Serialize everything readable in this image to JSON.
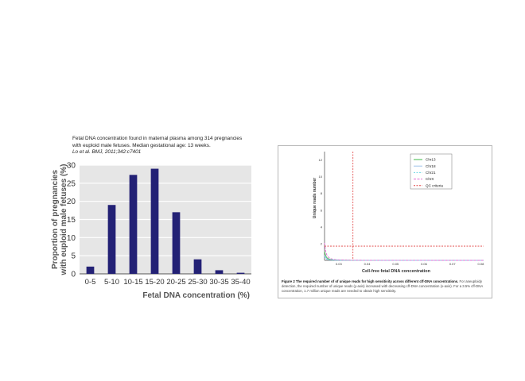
{
  "left_caption": {
    "line1": "Fetal DNA concentration found in maternal plasma among 314 pregnancies",
    "line2": "with euploid male fetuses. Median gestational age: 13 weeks.",
    "citation": "Lo et al. BMJ, 2011;342:c7401"
  },
  "chart_data": [
    {
      "type": "bar",
      "title": "",
      "xlabel": "Fetal DNA concentration (%)",
      "ylabel": "Proportion of pregnancies with euploid male fetuses (%)",
      "ylabel_lines": [
        "Proportion of pregnancies",
        "with euploid male fetuses (%)"
      ],
      "categories": [
        "0-5",
        "5-10",
        "10-15",
        "15-20",
        "20-25",
        "25-30",
        "30-35",
        "35-40"
      ],
      "values": [
        2,
        19,
        27.3,
        29,
        17,
        4,
        1,
        0.3
      ],
      "ylim": [
        0,
        30
      ],
      "yticks": [
        0,
        5,
        10,
        15,
        20,
        25,
        30
      ],
      "grid": true,
      "colors": {
        "bar": "#232175",
        "plot_bg": "#e6e6e6",
        "grid": "#ffffff"
      }
    },
    {
      "type": "line",
      "title": "",
      "xlabel": "Cell-free fetal DNA concentration",
      "ylabel": "Unique reads number",
      "xticks": [
        "0.03",
        "0.04",
        "0.05",
        "0.06",
        "0.07",
        "0.08"
      ],
      "yticks": [
        "2",
        "4",
        "6",
        "8",
        "10",
        "12"
      ],
      "xlim": [
        0.025,
        0.081
      ],
      "ylim": [
        0,
        13
      ],
      "series": [
        {
          "name": "Chr13",
          "color": "#3fb84a",
          "dash": "",
          "k": 0.0325
        },
        {
          "name": "Chr18",
          "color": "#9ec3ea",
          "dash": "",
          "k": 0.0246
        },
        {
          "name": "Chr21",
          "color": "#6fd6e6",
          "dash": "2,1.5",
          "k": 0.021
        },
        {
          "name": "ChrX",
          "color": "#e26bd3",
          "dash": "3,1.5",
          "k": 0.0458
        }
      ],
      "qc_criteria": {
        "name": "QC criteria",
        "color": "#e04040",
        "x": 0.035,
        "y": 1.7
      },
      "legend": "top-right",
      "grid": false
    }
  ],
  "fig2_caption": {
    "bold": "Figure 2 The required number of of unique reads for high sensitivity across different cff-DNA concentrations.",
    "text": " For aneuploidy detection, the required number of unique reads (y-axis) increased with decreasing cff-DNA concentration (x-axis). For a 3.5% cff-DNA concentration, 1.7 million unique reads are needed to obtain high sensitivity."
  }
}
